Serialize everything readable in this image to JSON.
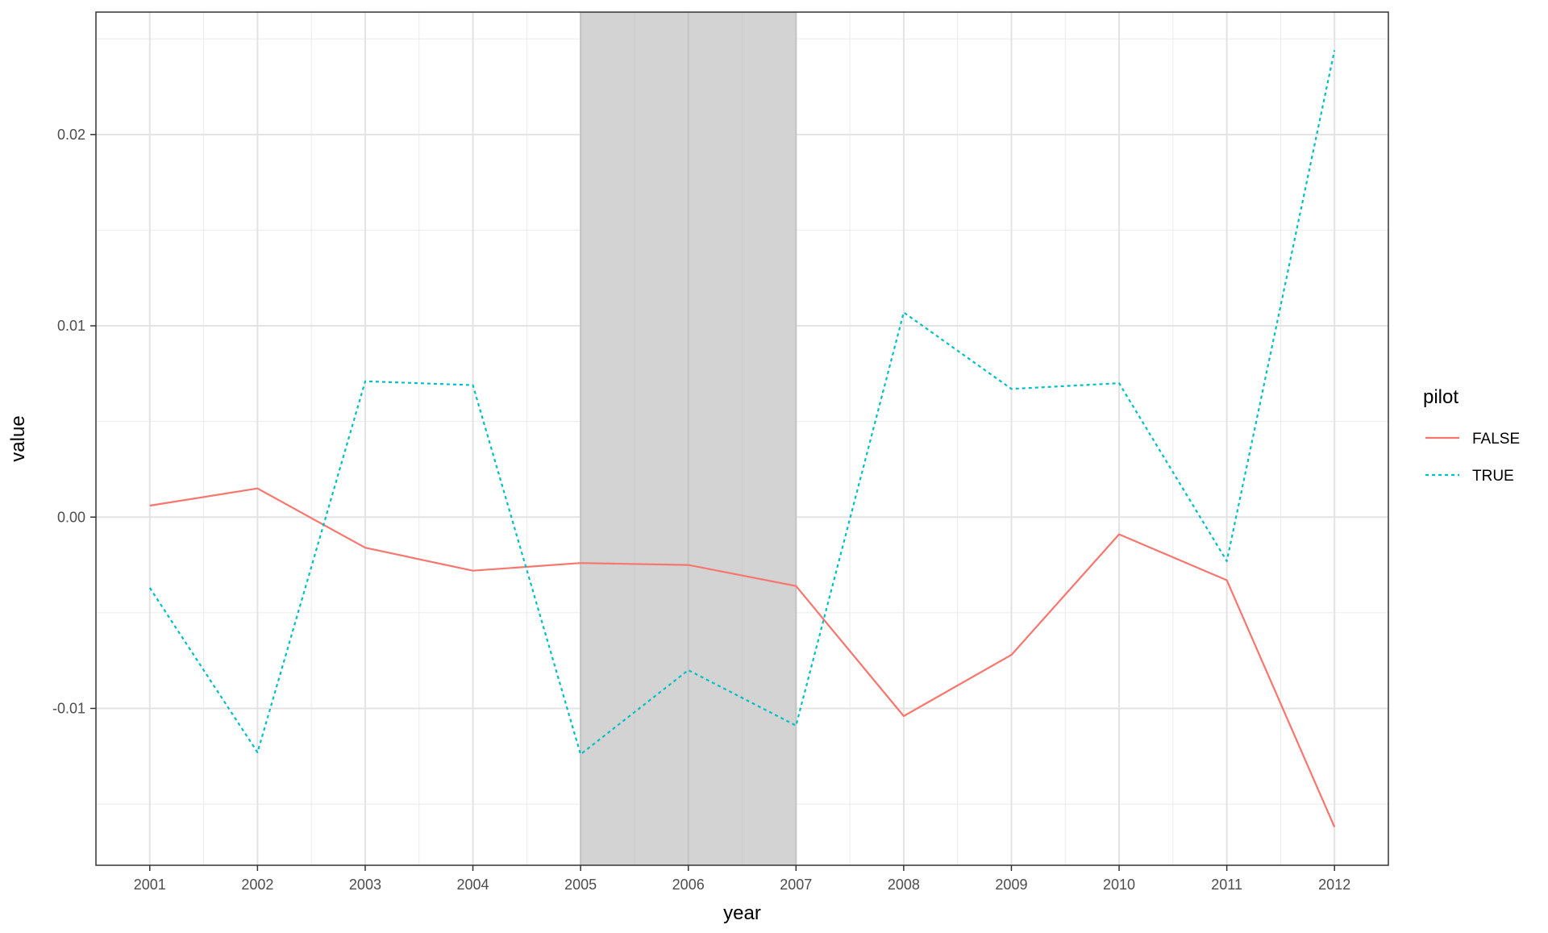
{
  "chart_data": {
    "type": "line",
    "title": "",
    "xlabel": "year",
    "ylabel": "value",
    "x": [
      2001,
      2002,
      2003,
      2004,
      2005,
      2006,
      2007,
      2008,
      2009,
      2010,
      2011,
      2012
    ],
    "xlim": [
      2000.5,
      2012.5
    ],
    "ylim": [
      -0.0182,
      0.0264
    ],
    "x_ticks": [
      2001,
      2002,
      2003,
      2004,
      2005,
      2006,
      2007,
      2008,
      2009,
      2010,
      2011,
      2012
    ],
    "x_tick_labels": [
      "2001",
      "2002",
      "2003",
      "2004",
      "2005",
      "2006",
      "2007",
      "2008",
      "2009",
      "2010",
      "2011",
      "2012"
    ],
    "y_ticks": [
      -0.01,
      0.0,
      0.01,
      0.02
    ],
    "y_tick_labels": [
      "-0.01",
      "0.00",
      "0.01",
      "0.02"
    ],
    "grid": true,
    "shaded_region": {
      "x_start": 2005,
      "x_end": 2007,
      "color": "#d3d3d3"
    },
    "legend": {
      "title": "pilot",
      "position": "right",
      "entries": [
        "FALSE",
        "TRUE"
      ]
    },
    "series": [
      {
        "name": "FALSE",
        "color": "#F8766D",
        "dash": "solid",
        "values": [
          0.0006,
          0.0015,
          -0.0016,
          -0.0028,
          -0.0024,
          -0.0025,
          -0.0036,
          -0.0104,
          -0.0072,
          -0.0009,
          -0.0033,
          -0.0162
        ]
      },
      {
        "name": "TRUE",
        "color": "#00BFC4",
        "dash": "dotted",
        "values": [
          -0.0037,
          -0.0123,
          0.0071,
          0.0069,
          -0.0124,
          -0.008,
          -0.0109,
          0.0107,
          0.0067,
          0.007,
          -0.0023,
          0.0244
        ]
      }
    ]
  }
}
